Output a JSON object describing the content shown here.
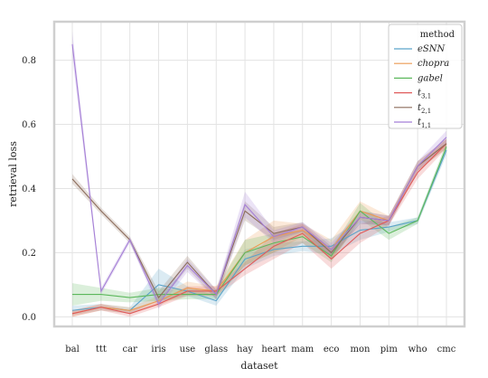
{
  "chart_data": {
    "type": "line",
    "xlabel": "dataset",
    "ylabel": "retrieval loss",
    "categories": [
      "bal",
      "ttt",
      "car",
      "iris",
      "use",
      "glass",
      "hay",
      "heart",
      "mam",
      "eco",
      "mon",
      "pim",
      "who",
      "cmc"
    ],
    "ylim": [
      -0.03,
      0.92
    ],
    "yticks": [
      0.0,
      0.2,
      0.4,
      0.6,
      0.8
    ],
    "ytick_labels": [
      "0.0",
      "0.2",
      "0.4",
      "0.6",
      "0.8"
    ],
    "grid": true,
    "legend": {
      "title": "method",
      "position": "top-right"
    },
    "series": [
      {
        "name": "eSNN",
        "label_main": "eSNN",
        "label_sub": "",
        "color": "#5ba3c9",
        "values": [
          0.02,
          0.03,
          0.02,
          0.1,
          0.08,
          0.05,
          0.18,
          0.21,
          0.22,
          0.22,
          0.27,
          0.28,
          0.3,
          0.52
        ],
        "band": [
          0.015,
          0.01,
          0.01,
          0.05,
          0.015,
          0.015,
          0.03,
          0.02,
          0.015,
          0.025,
          0.03,
          0.015,
          0.01,
          0.015
        ]
      },
      {
        "name": "chopra",
        "label_main": "chopra",
        "label_sub": "",
        "color": "#ec9a52",
        "values": [
          0.01,
          0.03,
          0.02,
          0.05,
          0.09,
          0.08,
          0.2,
          0.25,
          0.27,
          0.21,
          0.33,
          0.3,
          0.47,
          0.54
        ],
        "band": [
          0.01,
          0.01,
          0.01,
          0.015,
          0.02,
          0.015,
          0.04,
          0.05,
          0.02,
          0.03,
          0.03,
          0.015,
          0.015,
          0.015
        ]
      },
      {
        "name": "gabel",
        "label_main": "gabel",
        "label_sub": "",
        "color": "#5cb85c",
        "values": [
          0.07,
          0.07,
          0.06,
          0.07,
          0.07,
          0.07,
          0.2,
          0.23,
          0.25,
          0.19,
          0.33,
          0.26,
          0.3,
          0.53
        ],
        "band": [
          0.035,
          0.02,
          0.015,
          0.02,
          0.015,
          0.015,
          0.04,
          0.03,
          0.02,
          0.02,
          0.025,
          0.02,
          0.01,
          0.015
        ]
      },
      {
        "name": "t31",
        "label_main": "t",
        "label_sub": "3,1",
        "color": "#e05a5a",
        "values": [
          0.01,
          0.03,
          0.01,
          0.04,
          0.08,
          0.08,
          0.15,
          0.22,
          0.26,
          0.18,
          0.26,
          0.3,
          0.45,
          0.54
        ],
        "band": [
          0.01,
          0.01,
          0.01,
          0.01,
          0.015,
          0.015,
          0.02,
          0.04,
          0.03,
          0.03,
          0.03,
          0.015,
          0.02,
          0.015
        ]
      },
      {
        "name": "t21",
        "label_main": "t",
        "label_sub": "2,1",
        "color": "#8c6d5c",
        "values": [
          0.43,
          0.33,
          0.24,
          0.06,
          0.17,
          0.07,
          0.33,
          0.26,
          0.28,
          0.2,
          0.31,
          0.3,
          0.47,
          0.54
        ],
        "band": [
          0.015,
          0.01,
          0.01,
          0.02,
          0.02,
          0.015,
          0.03,
          0.02,
          0.015,
          0.02,
          0.02,
          0.015,
          0.015,
          0.015
        ]
      },
      {
        "name": "t11",
        "label_main": "t",
        "label_sub": "1,1",
        "color": "#a57fd6",
        "values": [
          0.85,
          0.08,
          0.24,
          0.04,
          0.16,
          0.07,
          0.35,
          0.25,
          0.28,
          0.21,
          0.31,
          0.3,
          0.47,
          0.56
        ],
        "band": [
          0.04,
          0.01,
          0.01,
          0.015,
          0.02,
          0.015,
          0.04,
          0.02,
          0.015,
          0.02,
          0.02,
          0.015,
          0.015,
          0.02
        ]
      }
    ]
  }
}
